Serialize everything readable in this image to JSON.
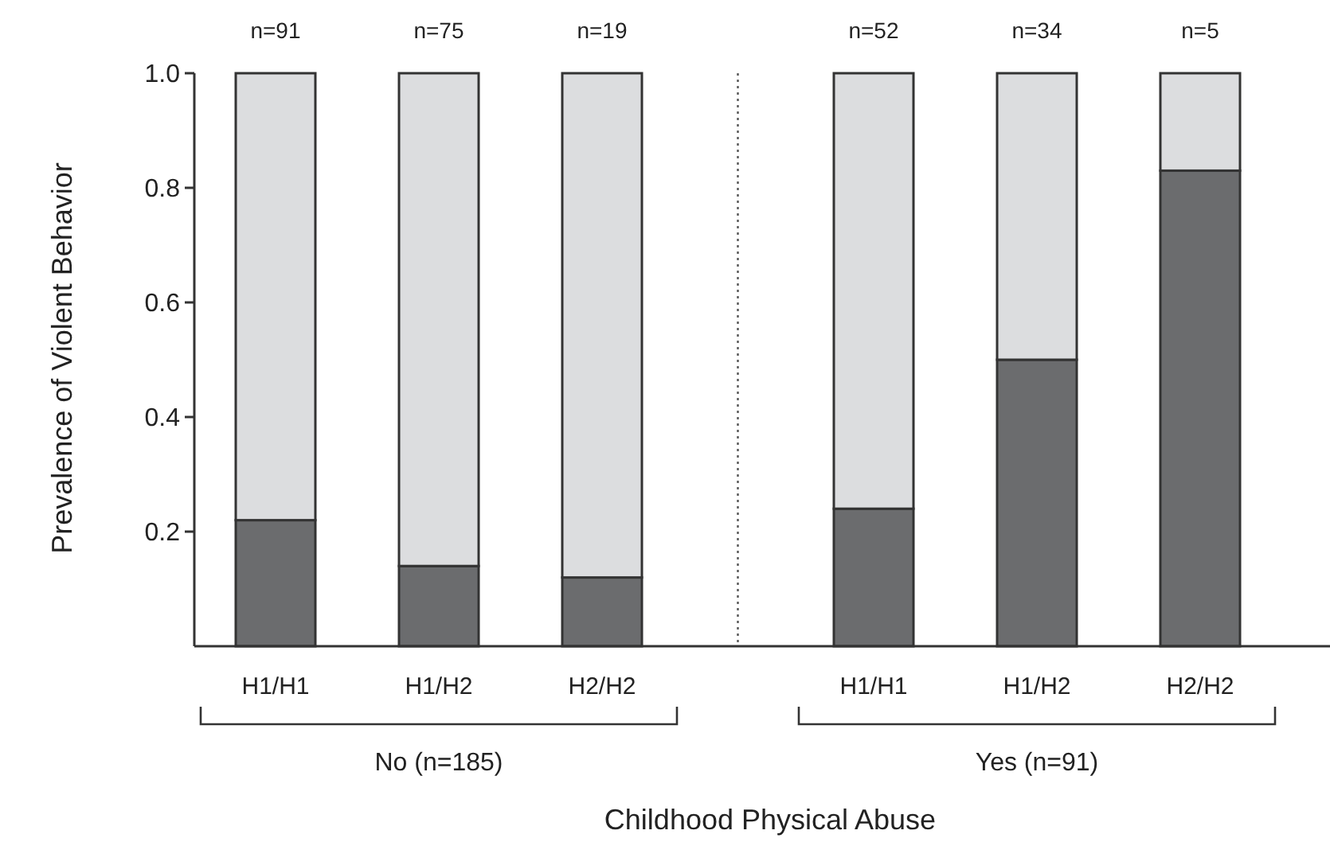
{
  "chart_data": {
    "type": "bar",
    "stacked": true,
    "xlabel": "Childhood Physical Abuse",
    "ylabel": "Prevalence of Violent Behavior",
    "categories": [
      "H1/H1",
      "H1/H2",
      "H2/H2",
      "H1/H1",
      "H1/H2",
      "H2/H2"
    ],
    "series": [
      {
        "color": "#6b6c6e",
        "values": [
          0.22,
          0.14,
          0.12,
          0.24,
          0.5,
          0.83
        ]
      },
      {
        "color": "#dcdddf",
        "values": [
          0.78,
          0.86,
          0.88,
          0.76,
          0.5,
          0.17
        ]
      }
    ],
    "ylim": [
      0,
      1
    ],
    "yticks": [
      0.2,
      0.4,
      0.6,
      {
        "value": 0.8,
        "label": "0.8"
      },
      {
        "value": 1,
        "label": "1.0"
      }
    ],
    "annotations": [
      "n=91",
      "n=75",
      "n=19",
      "n=52",
      "n=34",
      "n=5",
      "No (n=185)",
      "Yes (n=91)"
    ],
    "grid": false
  }
}
